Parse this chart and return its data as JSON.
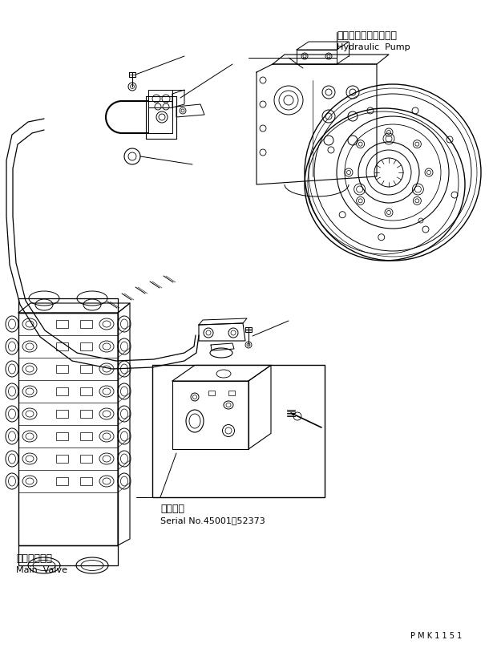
{
  "bg_color": "#ffffff",
  "line_color": "#000000",
  "label_hydraulic_pump_jp": "ハイドロリックポンプ",
  "label_hydraulic_pump_en": "Hydraulic  Pump",
  "label_main_valve_jp": "メインバルブ",
  "label_main_valve_en": "Main  Valve",
  "label_serial_jp": "適用号機",
  "label_serial_en": "Serial No.45001～52373",
  "label_pmk": "P M K 1 1 5 1",
  "figsize": [
    6.2,
    8.08
  ],
  "dpi": 100
}
